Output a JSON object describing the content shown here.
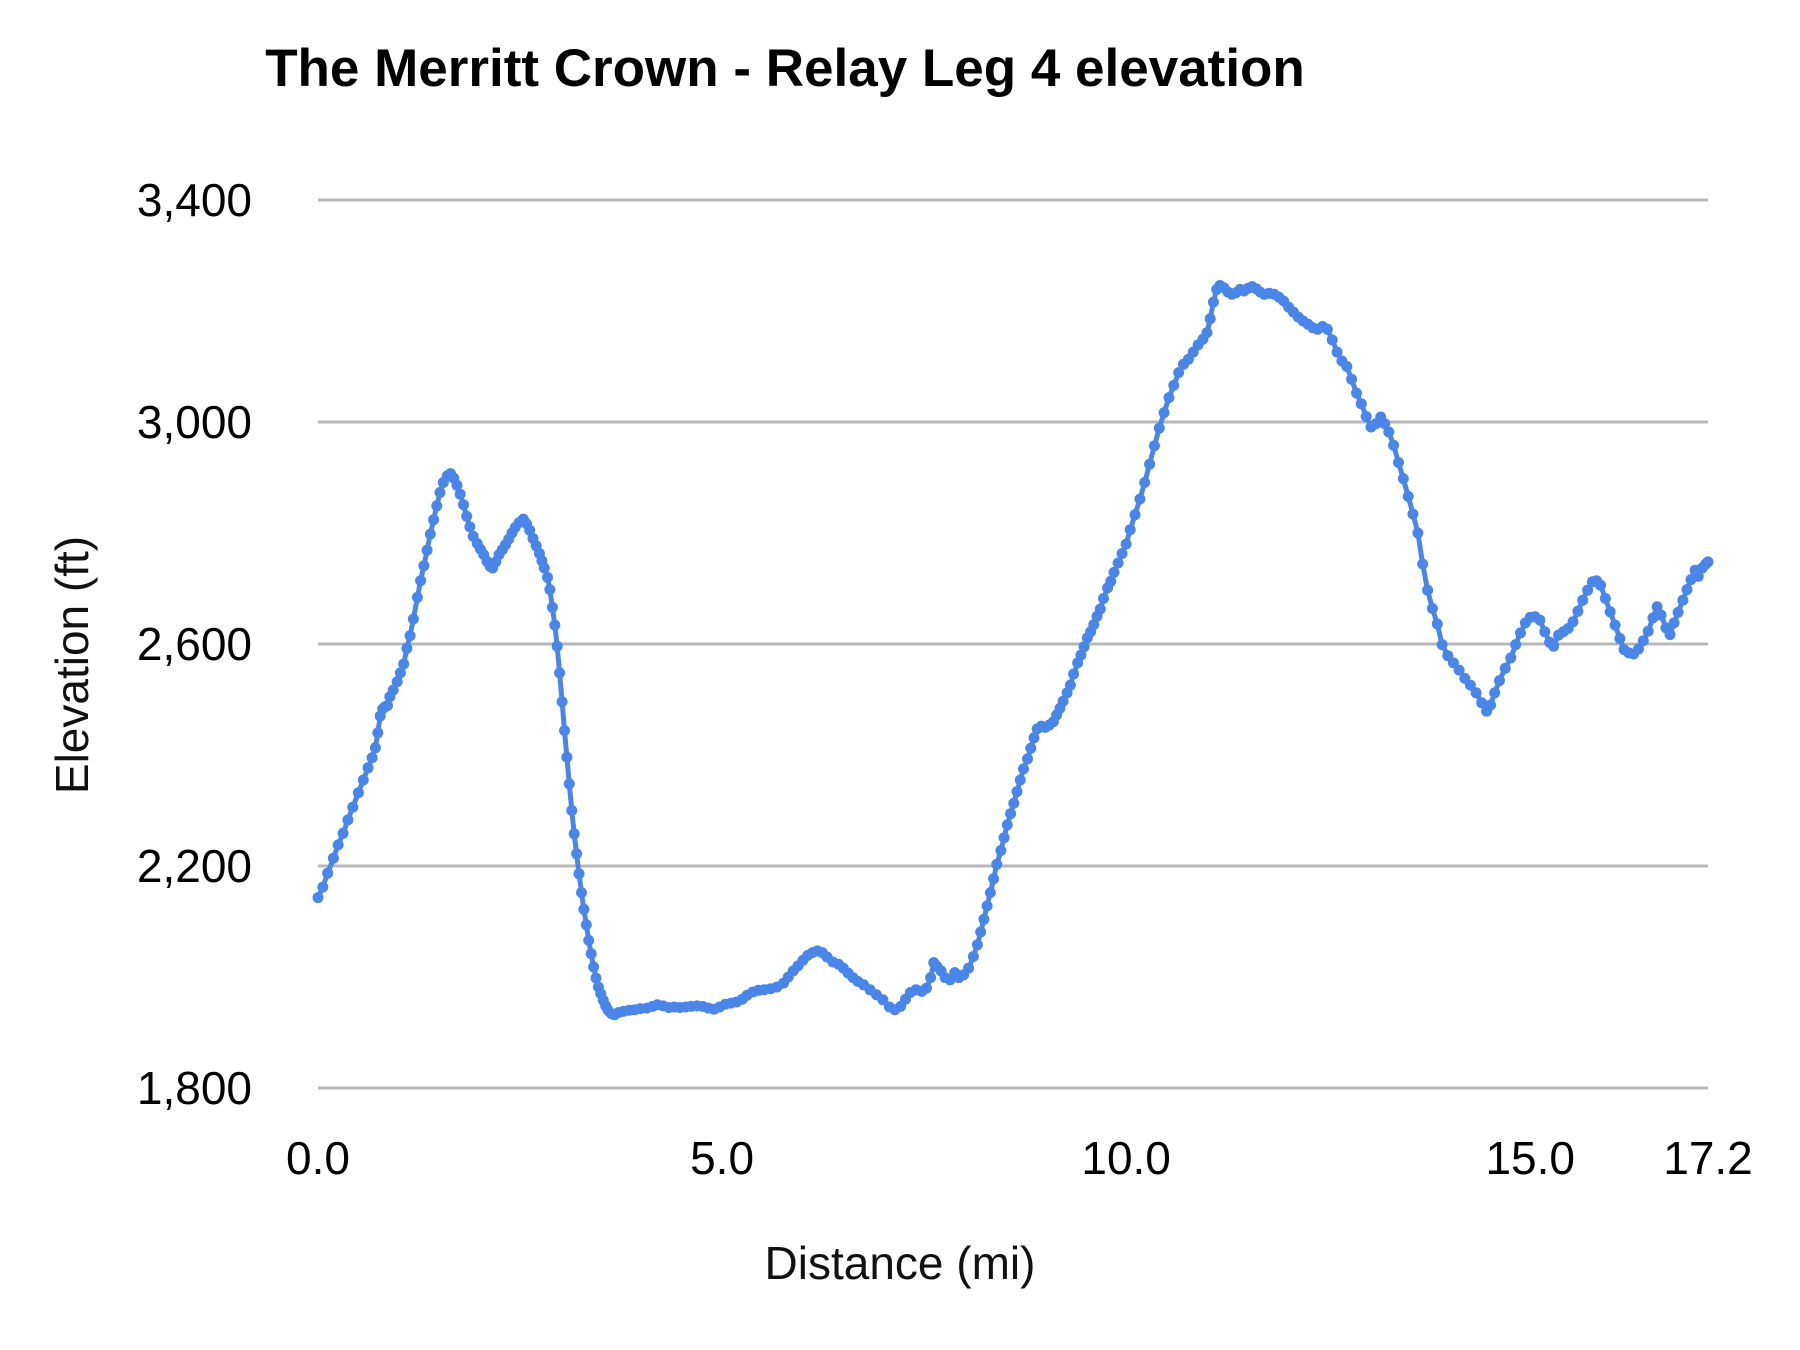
{
  "page": {
    "background": "#ffffff"
  },
  "chart_data": {
    "type": "line",
    "title": "The Merritt Crown - Relay Leg 4 elevation",
    "xlabel": "Distance (mi)",
    "ylabel": "Elevation (ft)",
    "xlim": [
      0,
      17.2
    ],
    "ylim": [
      1800,
      3400
    ],
    "grid": "horizontal",
    "legend": "none",
    "series_color": "#4a86e8",
    "grid_color": "#b7b7b7",
    "text_color": "#000000",
    "marker": "circle",
    "x_ticks": [
      {
        "label": "0.0",
        "value": 0
      },
      {
        "label": "5.0",
        "value": 5
      },
      {
        "label": "10.0",
        "value": 10
      },
      {
        "label": "15.0",
        "value": 15
      },
      {
        "label": "17.2",
        "value": 17.2
      }
    ],
    "y_ticks": [
      {
        "label": "1,800",
        "value": 1800
      },
      {
        "label": "2,200",
        "value": 2200
      },
      {
        "label": "2,600",
        "value": 2600
      },
      {
        "label": "3,000",
        "value": 3000
      },
      {
        "label": "3,400",
        "value": 3400
      }
    ],
    "points": [
      [
        0.0,
        2143
      ],
      [
        0.06,
        2162
      ],
      [
        0.12,
        2187
      ],
      [
        0.19,
        2214
      ],
      [
        0.25,
        2238
      ],
      [
        0.31,
        2259
      ],
      [
        0.37,
        2283
      ],
      [
        0.43,
        2306
      ],
      [
        0.5,
        2332
      ],
      [
        0.56,
        2355
      ],
      [
        0.62,
        2377
      ],
      [
        0.67,
        2395
      ],
      [
        0.71,
        2413
      ],
      [
        0.74,
        2440
      ],
      [
        0.77,
        2470
      ],
      [
        0.8,
        2483
      ],
      [
        0.83,
        2487
      ],
      [
        0.86,
        2489
      ],
      [
        0.89,
        2505
      ],
      [
        0.93,
        2517
      ],
      [
        0.98,
        2532
      ],
      [
        1.02,
        2548
      ],
      [
        1.06,
        2564
      ],
      [
        1.1,
        2592
      ],
      [
        1.14,
        2615
      ],
      [
        1.18,
        2645
      ],
      [
        1.23,
        2684
      ],
      [
        1.27,
        2714
      ],
      [
        1.31,
        2741
      ],
      [
        1.35,
        2769
      ],
      [
        1.39,
        2798
      ],
      [
        1.43,
        2824
      ],
      [
        1.47,
        2849
      ],
      [
        1.51,
        2873
      ],
      [
        1.55,
        2891
      ],
      [
        1.6,
        2903
      ],
      [
        1.64,
        2907
      ],
      [
        1.68,
        2899
      ],
      [
        1.72,
        2886
      ],
      [
        1.76,
        2870
      ],
      [
        1.8,
        2851
      ],
      [
        1.84,
        2830
      ],
      [
        1.88,
        2811
      ],
      [
        1.92,
        2794
      ],
      [
        1.97,
        2781
      ],
      [
        2.01,
        2771
      ],
      [
        2.05,
        2761
      ],
      [
        2.09,
        2749
      ],
      [
        2.13,
        2740
      ],
      [
        2.16,
        2737
      ],
      [
        2.2,
        2748
      ],
      [
        2.24,
        2761
      ],
      [
        2.28,
        2770
      ],
      [
        2.32,
        2779
      ],
      [
        2.36,
        2789
      ],
      [
        2.4,
        2800
      ],
      [
        2.44,
        2810
      ],
      [
        2.49,
        2819
      ],
      [
        2.54,
        2825
      ],
      [
        2.58,
        2817
      ],
      [
        2.62,
        2805
      ],
      [
        2.66,
        2790
      ],
      [
        2.7,
        2777
      ],
      [
        2.74,
        2763
      ],
      [
        2.77,
        2750
      ],
      [
        2.8,
        2737
      ],
      [
        2.84,
        2720
      ],
      [
        2.87,
        2698
      ],
      [
        2.9,
        2666
      ],
      [
        2.93,
        2634
      ],
      [
        2.96,
        2596
      ],
      [
        2.99,
        2548
      ],
      [
        3.02,
        2496
      ],
      [
        3.05,
        2444
      ],
      [
        3.08,
        2396
      ],
      [
        3.11,
        2348
      ],
      [
        3.14,
        2300
      ],
      [
        3.17,
        2258
      ],
      [
        3.2,
        2222
      ],
      [
        3.23,
        2186
      ],
      [
        3.26,
        2152
      ],
      [
        3.29,
        2122
      ],
      [
        3.32,
        2094
      ],
      [
        3.35,
        2066
      ],
      [
        3.38,
        2042
      ],
      [
        3.41,
        2018
      ],
      [
        3.44,
        1998
      ],
      [
        3.47,
        1982
      ],
      [
        3.5,
        1970
      ],
      [
        3.53,
        1958
      ],
      [
        3.56,
        1948
      ],
      [
        3.59,
        1940
      ],
      [
        3.63,
        1934
      ],
      [
        3.67,
        1932
      ],
      [
        3.72,
        1936
      ],
      [
        3.78,
        1938
      ],
      [
        3.85,
        1940
      ],
      [
        3.92,
        1941
      ],
      [
        3.99,
        1943
      ],
      [
        4.07,
        1944
      ],
      [
        4.14,
        1947
      ],
      [
        4.2,
        1950
      ],
      [
        4.27,
        1948
      ],
      [
        4.34,
        1945
      ],
      [
        4.41,
        1946
      ],
      [
        4.48,
        1945
      ],
      [
        4.55,
        1946
      ],
      [
        4.62,
        1947
      ],
      [
        4.69,
        1948
      ],
      [
        4.76,
        1947
      ],
      [
        4.83,
        1944
      ],
      [
        4.9,
        1942
      ],
      [
        4.97,
        1946
      ],
      [
        5.04,
        1951
      ],
      [
        5.11,
        1953
      ],
      [
        5.18,
        1955
      ],
      [
        5.25,
        1960
      ],
      [
        5.31,
        1967
      ],
      [
        5.38,
        1973
      ],
      [
        5.45,
        1976
      ],
      [
        5.52,
        1977
      ],
      [
        5.6,
        1979
      ],
      [
        5.68,
        1982
      ],
      [
        5.76,
        1989
      ],
      [
        5.82,
        2000
      ],
      [
        5.88,
        2011
      ],
      [
        5.94,
        2020
      ],
      [
        6.0,
        2030
      ],
      [
        6.06,
        2039
      ],
      [
        6.12,
        2044
      ],
      [
        6.18,
        2047
      ],
      [
        6.24,
        2044
      ],
      [
        6.3,
        2036
      ],
      [
        6.37,
        2027
      ],
      [
        6.44,
        2023
      ],
      [
        6.5,
        2016
      ],
      [
        6.56,
        2007
      ],
      [
        6.62,
        1999
      ],
      [
        6.68,
        1992
      ],
      [
        6.75,
        1986
      ],
      [
        6.83,
        1977
      ],
      [
        6.91,
        1968
      ],
      [
        6.99,
        1959
      ],
      [
        7.07,
        1946
      ],
      [
        7.14,
        1941
      ],
      [
        7.21,
        1947
      ],
      [
        7.27,
        1960
      ],
      [
        7.33,
        1972
      ],
      [
        7.4,
        1977
      ],
      [
        7.47,
        1974
      ],
      [
        7.53,
        1980
      ],
      [
        7.58,
        1999
      ],
      [
        7.62,
        2026
      ],
      [
        7.66,
        2019
      ],
      [
        7.71,
        2011
      ],
      [
        7.76,
        1999
      ],
      [
        7.82,
        1995
      ],
      [
        7.88,
        2008
      ],
      [
        7.93,
        1999
      ],
      [
        7.99,
        2004
      ],
      [
        8.05,
        2016
      ],
      [
        8.11,
        2037
      ],
      [
        8.16,
        2058
      ],
      [
        8.2,
        2081
      ],
      [
        8.24,
        2104
      ],
      [
        8.28,
        2128
      ],
      [
        8.32,
        2152
      ],
      [
        8.36,
        2177
      ],
      [
        8.4,
        2203
      ],
      [
        8.45,
        2228
      ],
      [
        8.49,
        2251
      ],
      [
        8.53,
        2274
      ],
      [
        8.57,
        2294
      ],
      [
        8.61,
        2313
      ],
      [
        8.65,
        2334
      ],
      [
        8.69,
        2355
      ],
      [
        8.73,
        2375
      ],
      [
        8.78,
        2393
      ],
      [
        8.82,
        2412
      ],
      [
        8.86,
        2431
      ],
      [
        8.9,
        2447
      ],
      [
        8.95,
        2452
      ],
      [
        9.0,
        2450
      ],
      [
        9.05,
        2454
      ],
      [
        9.1,
        2460
      ],
      [
        9.14,
        2472
      ],
      [
        9.18,
        2484
      ],
      [
        9.22,
        2497
      ],
      [
        9.27,
        2512
      ],
      [
        9.31,
        2526
      ],
      [
        9.35,
        2546
      ],
      [
        9.4,
        2566
      ],
      [
        9.44,
        2580
      ],
      [
        9.48,
        2595
      ],
      [
        9.52,
        2611
      ],
      [
        9.56,
        2622
      ],
      [
        9.6,
        2635
      ],
      [
        9.64,
        2650
      ],
      [
        9.68,
        2663
      ],
      [
        9.72,
        2682
      ],
      [
        9.77,
        2701
      ],
      [
        9.81,
        2713
      ],
      [
        9.85,
        2729
      ],
      [
        9.9,
        2746
      ],
      [
        9.95,
        2763
      ],
      [
        10.0,
        2780
      ],
      [
        10.05,
        2806
      ],
      [
        10.11,
        2833
      ],
      [
        10.17,
        2861
      ],
      [
        10.23,
        2891
      ],
      [
        10.29,
        2924
      ],
      [
        10.35,
        2957
      ],
      [
        10.41,
        2989
      ],
      [
        10.47,
        3017
      ],
      [
        10.53,
        3044
      ],
      [
        10.59,
        3066
      ],
      [
        10.65,
        3089
      ],
      [
        10.71,
        3104
      ],
      [
        10.77,
        3113
      ],
      [
        10.83,
        3126
      ],
      [
        10.89,
        3139
      ],
      [
        10.95,
        3149
      ],
      [
        11.0,
        3161
      ],
      [
        11.04,
        3186
      ],
      [
        11.08,
        3216
      ],
      [
        11.12,
        3239
      ],
      [
        11.16,
        3246
      ],
      [
        11.21,
        3242
      ],
      [
        11.26,
        3234
      ],
      [
        11.31,
        3230
      ],
      [
        11.36,
        3233
      ],
      [
        11.41,
        3239
      ],
      [
        11.46,
        3236
      ],
      [
        11.51,
        3241
      ],
      [
        11.56,
        3244
      ],
      [
        11.61,
        3240
      ],
      [
        11.66,
        3234
      ],
      [
        11.71,
        3230
      ],
      [
        11.77,
        3232
      ],
      [
        11.83,
        3230
      ],
      [
        11.89,
        3225
      ],
      [
        11.95,
        3218
      ],
      [
        12.01,
        3207
      ],
      [
        12.07,
        3198
      ],
      [
        12.13,
        3189
      ],
      [
        12.19,
        3182
      ],
      [
        12.25,
        3176
      ],
      [
        12.31,
        3170
      ],
      [
        12.37,
        3167
      ],
      [
        12.43,
        3172
      ],
      [
        12.49,
        3167
      ],
      [
        12.55,
        3148
      ],
      [
        12.61,
        3126
      ],
      [
        12.67,
        3110
      ],
      [
        12.73,
        3100
      ],
      [
        12.79,
        3077
      ],
      [
        12.85,
        3052
      ],
      [
        12.91,
        3033
      ],
      [
        12.97,
        3010
      ],
      [
        13.03,
        2991
      ],
      [
        13.09,
        2997
      ],
      [
        13.15,
        3009
      ],
      [
        13.2,
        2997
      ],
      [
        13.25,
        2982
      ],
      [
        13.31,
        2958
      ],
      [
        13.37,
        2927
      ],
      [
        13.43,
        2898
      ],
      [
        13.49,
        2866
      ],
      [
        13.55,
        2834
      ],
      [
        13.61,
        2800
      ],
      [
        13.67,
        2744
      ],
      [
        13.73,
        2697
      ],
      [
        13.79,
        2664
      ],
      [
        13.85,
        2636
      ],
      [
        13.91,
        2599
      ],
      [
        13.98,
        2579
      ],
      [
        14.05,
        2566
      ],
      [
        14.12,
        2553
      ],
      [
        14.19,
        2538
      ],
      [
        14.26,
        2526
      ],
      [
        14.33,
        2512
      ],
      [
        14.4,
        2494
      ],
      [
        14.46,
        2479
      ],
      [
        14.51,
        2490
      ],
      [
        14.56,
        2512
      ],
      [
        14.62,
        2534
      ],
      [
        14.69,
        2556
      ],
      [
        14.76,
        2575
      ],
      [
        14.82,
        2599
      ],
      [
        14.88,
        2620
      ],
      [
        14.94,
        2638
      ],
      [
        15.0,
        2648
      ],
      [
        15.06,
        2649
      ],
      [
        15.12,
        2643
      ],
      [
        15.18,
        2622
      ],
      [
        15.24,
        2603
      ],
      [
        15.29,
        2596
      ],
      [
        15.35,
        2616
      ],
      [
        15.41,
        2622
      ],
      [
        15.47,
        2628
      ],
      [
        15.53,
        2640
      ],
      [
        15.59,
        2659
      ],
      [
        15.65,
        2679
      ],
      [
        15.71,
        2697
      ],
      [
        15.77,
        2712
      ],
      [
        15.82,
        2714
      ],
      [
        15.87,
        2706
      ],
      [
        15.93,
        2682
      ],
      [
        15.99,
        2658
      ],
      [
        16.05,
        2634
      ],
      [
        16.11,
        2610
      ],
      [
        16.16,
        2590
      ],
      [
        16.22,
        2584
      ],
      [
        16.28,
        2582
      ],
      [
        16.34,
        2591
      ],
      [
        16.4,
        2606
      ],
      [
        16.46,
        2623
      ],
      [
        16.52,
        2647
      ],
      [
        16.57,
        2667
      ],
      [
        16.62,
        2652
      ],
      [
        16.68,
        2629
      ],
      [
        16.73,
        2617
      ],
      [
        16.78,
        2638
      ],
      [
        16.83,
        2657
      ],
      [
        16.89,
        2679
      ],
      [
        16.94,
        2698
      ],
      [
        16.99,
        2716
      ],
      [
        17.04,
        2733
      ],
      [
        17.08,
        2722
      ],
      [
        17.13,
        2737
      ],
      [
        17.17,
        2744
      ],
      [
        17.2,
        2748
      ]
    ]
  }
}
